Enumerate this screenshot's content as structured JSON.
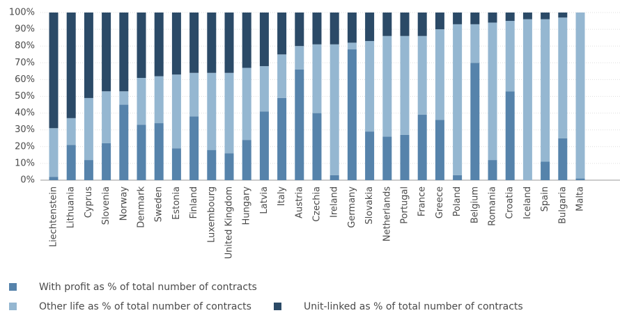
{
  "chart_data": {
    "type": "stacked_bar",
    "categories": [
      "Liechtenstein",
      "Lithuania",
      "Cyprus",
      "Slovenia",
      "Norway",
      "Denmark",
      "Sweden",
      "Estonia",
      "Finland",
      "Luxembourg",
      "United Kingdom",
      "Hungary",
      "Latvia",
      "Italy",
      "Austria",
      "Czechia",
      "Ireland",
      "Germany",
      "Slovakia",
      "Netherlands",
      "Portugal",
      "France",
      "Greece",
      "Poland",
      "Belgium",
      "Romania",
      "Croatia",
      "Iceland",
      "Spain",
      "Bulgaria",
      "Malta"
    ],
    "series": [
      {
        "name": "With profit as % of total number of contracts",
        "color": "#5683ab",
        "values": [
          2,
          21,
          12,
          22,
          45,
          33,
          34,
          19,
          38,
          18,
          16,
          24,
          41,
          49,
          66,
          40,
          3,
          78,
          29,
          26,
          27,
          39,
          36,
          3,
          70,
          12,
          53,
          0,
          11,
          25,
          1
        ]
      },
      {
        "name": "Other life as % of total number of contracts",
        "color": "#95b7d1",
        "values": [
          29,
          16,
          37,
          31,
          8,
          28,
          28,
          44,
          26,
          46,
          48,
          43,
          27,
          26,
          14,
          41,
          78,
          4,
          54,
          60,
          59,
          47,
          54,
          90,
          23,
          82,
          42,
          96,
          85,
          72,
          99
        ]
      },
      {
        "name": "Unit-linked as % of total number of contracts",
        "color": "#2b4a67",
        "values": [
          69,
          63,
          51,
          47,
          47,
          39,
          38,
          37,
          36,
          36,
          36,
          33,
          32,
          25,
          20,
          19,
          19,
          18,
          17,
          14,
          14,
          14,
          10,
          7,
          7,
          6,
          5,
          4,
          4,
          3,
          0
        ]
      }
    ],
    "ylim": [
      0,
      100
    ],
    "yticks": [
      {
        "value": 0,
        "label": "0%"
      },
      {
        "value": 10,
        "label": "10%"
      },
      {
        "value": 20,
        "label": "20%"
      },
      {
        "value": 30,
        "label": "30%"
      },
      {
        "value": 40,
        "label": "40%"
      },
      {
        "value": 50,
        "label": "50%"
      },
      {
        "value": 60,
        "label": "60%"
      },
      {
        "value": 70,
        "label": "70%"
      },
      {
        "value": 80,
        "label": "80%"
      },
      {
        "value": 90,
        "label": "90%"
      },
      {
        "value": 100,
        "label": "100%"
      }
    ],
    "grid": true
  }
}
